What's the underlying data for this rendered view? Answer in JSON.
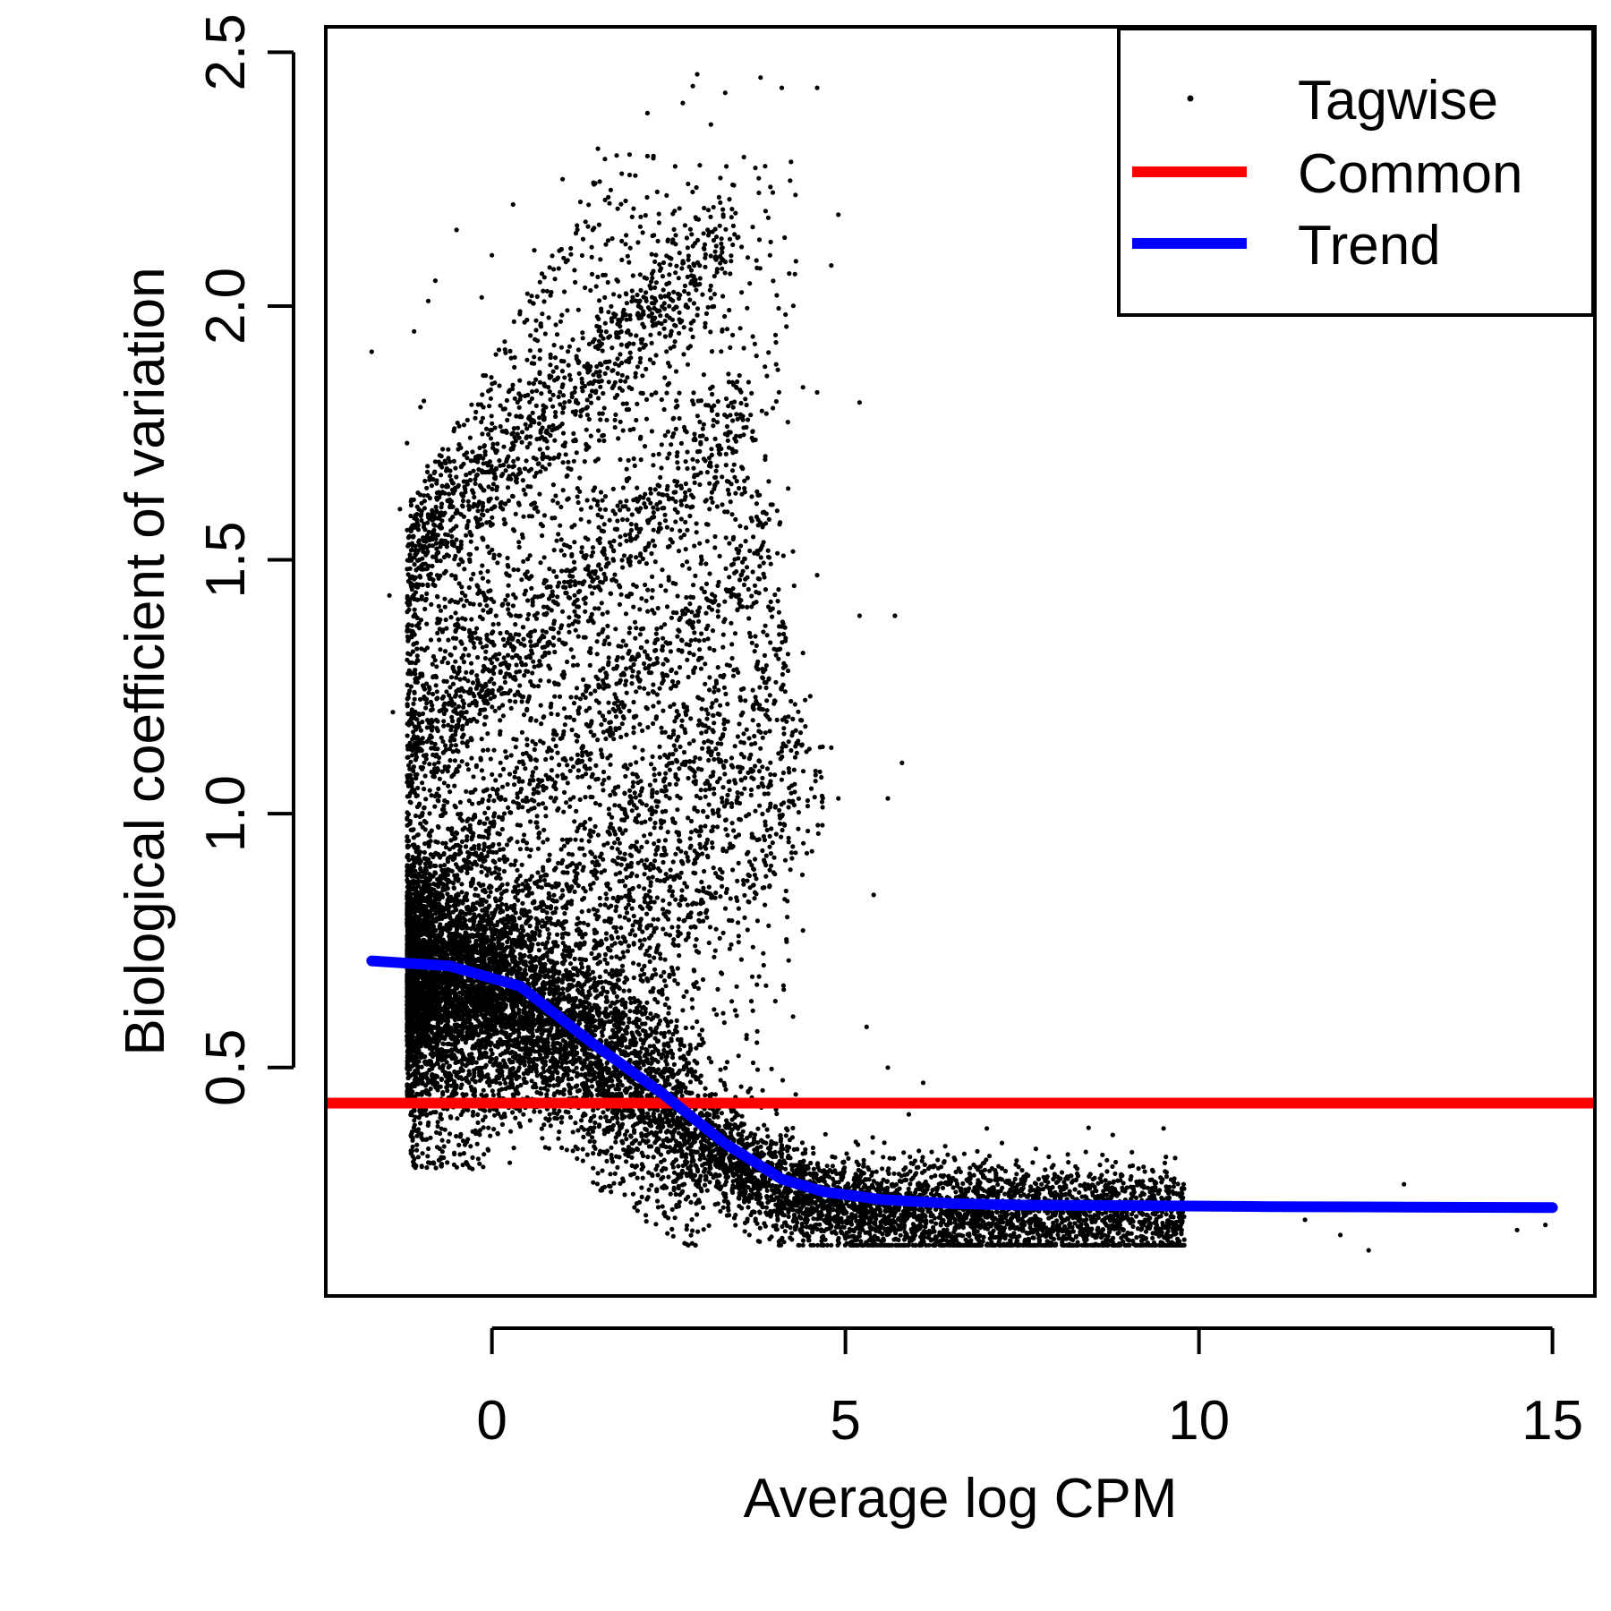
{
  "chart_data": {
    "type": "scatter",
    "xlabel": "Average log CPM",
    "ylabel": "Biological coefficient of variation",
    "xlim": [
      -2.35,
      15.6
    ],
    "ylim": [
      0.05,
      2.55
    ],
    "xticks": [
      0,
      5,
      10,
      15
    ],
    "xtick_labels": [
      "0",
      "5",
      "10",
      "15"
    ],
    "yticks": [
      0.5,
      1.0,
      1.5,
      2.0,
      2.5
    ],
    "ytick_labels": [
      "0.5",
      "1.0",
      "1.5",
      "2.0",
      "2.5"
    ],
    "grid": false,
    "legend": {
      "position": "top-right",
      "entries": [
        {
          "label": "Tagwise",
          "kind": "point",
          "color": "#000000"
        },
        {
          "label": "Common",
          "kind": "line",
          "color": "#ff0000"
        },
        {
          "label": "Trend",
          "kind": "line",
          "color": "#0000ff"
        }
      ]
    },
    "series": [
      {
        "name": "Tagwise",
        "kind": "scatter",
        "color": "#000000",
        "points_note": "dense cloud of gene-wise dispersions",
        "points": [
          [
            -1.7,
            1.91
          ],
          [
            -1.45,
            1.43
          ],
          [
            -1.4,
            1.2
          ],
          [
            -1.3,
            1.6
          ],
          [
            -1.2,
            1.73
          ],
          [
            -1.1,
            1.95
          ],
          [
            -0.9,
            2.01
          ],
          [
            -0.8,
            2.05
          ],
          [
            -0.5,
            2.15
          ],
          [
            0.0,
            2.1
          ],
          [
            0.3,
            2.2
          ],
          [
            0.6,
            2.11
          ],
          [
            1.0,
            2.25
          ],
          [
            1.5,
            2.31
          ],
          [
            2.2,
            2.38
          ],
          [
            2.7,
            2.4
          ],
          [
            3.3,
            2.42
          ],
          [
            3.8,
            2.45
          ],
          [
            4.1,
            2.43
          ],
          [
            4.6,
            2.43
          ],
          [
            4.9,
            2.18
          ],
          [
            4.8,
            2.08
          ],
          [
            4.6,
            1.83
          ],
          [
            4.4,
            1.84
          ],
          [
            5.2,
            1.81
          ],
          [
            5.2,
            1.39
          ],
          [
            5.7,
            1.39
          ],
          [
            5.8,
            1.1
          ],
          [
            5.6,
            1.03
          ],
          [
            4.6,
            1.47
          ],
          [
            4.9,
            1.03
          ],
          [
            4.8,
            1.13
          ],
          [
            5.4,
            0.84
          ],
          [
            4.4,
            0.77
          ],
          [
            5.3,
            0.58
          ],
          [
            5.6,
            0.5
          ],
          [
            6.1,
            0.47
          ],
          [
            7.0,
            0.38
          ],
          [
            8.5,
            0.28
          ],
          [
            9.5,
            0.38
          ],
          [
            11.5,
            0.2
          ],
          [
            12.0,
            0.17
          ],
          [
            12.4,
            0.14
          ],
          [
            12.9,
            0.27
          ],
          [
            13.9,
            0.22
          ],
          [
            14.5,
            0.18
          ],
          [
            14.9,
            0.19
          ]
        ]
      },
      {
        "name": "Common",
        "kind": "hline",
        "color": "#ff0000",
        "y": 0.43
      },
      {
        "name": "Trend",
        "kind": "line",
        "color": "#0000ff",
        "x": [
          -1.7,
          -0.6,
          0.4,
          1.4,
          2.4,
          3.3,
          4.1,
          4.7,
          5.5,
          6.5,
          7.5,
          9.0,
          11.0,
          13.0,
          15.0
        ],
        "y": [
          0.71,
          0.7,
          0.66,
          0.55,
          0.45,
          0.35,
          0.28,
          0.255,
          0.24,
          0.232,
          0.229,
          0.228,
          0.226,
          0.225,
          0.224
        ]
      }
    ]
  }
}
